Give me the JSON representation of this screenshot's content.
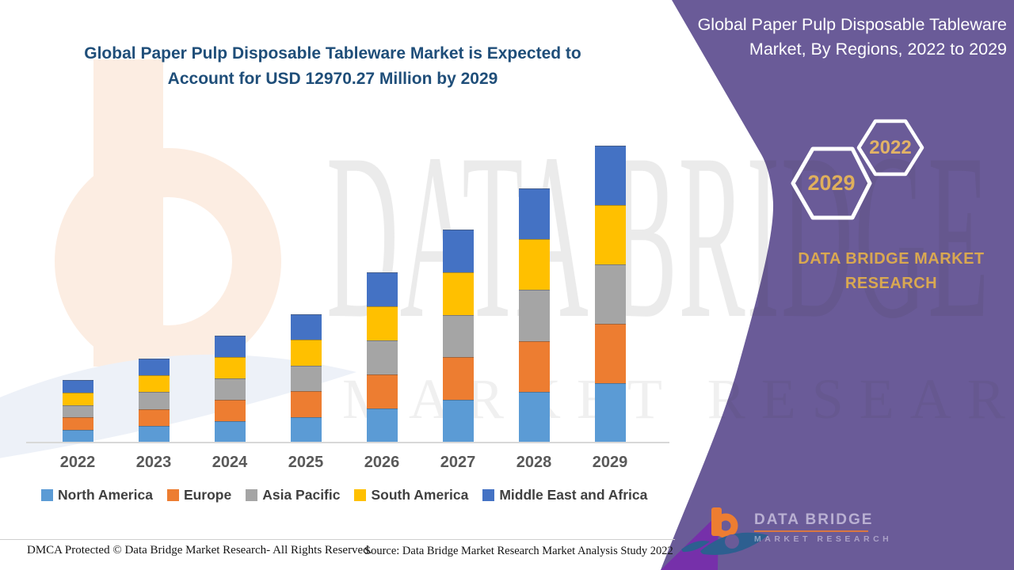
{
  "page": {
    "main_title": "Global Paper Pulp Disposable Tableware Market is Expected to Account for USD 12970.27 Million by 2029",
    "panel": {
      "title": "Global Paper Pulp Disposable Tableware Market, By Regions, 2022 to 2029",
      "badge_small": "2022",
      "badge_large": "2029",
      "brand_text": "DATA BRIDGE MARKET RESEARCH"
    },
    "watermark": {
      "line1": "DATA BRIDGE",
      "line2": "MARKET RESEARCH"
    },
    "footer": {
      "dmca": "DMCA Protected © Data Bridge Market Research- All Rights Reserved.",
      "source": "Source: Data Bridge Market Research Market Analysis Study 2022"
    },
    "logo": {
      "line1": "DATA BRIDGE",
      "line2": "MARKET RESEARCH"
    }
  },
  "colors": {
    "panel_bg": "#6A5B98",
    "panel_accent": "#7630AA",
    "title_text": "#1F4E79",
    "badge_text": "#DFAF5C",
    "brand_text": "#D9A851",
    "axis_label": "#595959",
    "legend_text": "#404040",
    "logo_orange": "#ED7D31",
    "logo_blue": "#2D5F90"
  },
  "chart_data": {
    "type": "bar",
    "stacked": true,
    "title": "Global Paper Pulp Disposable Tableware Market is Expected to Account for USD 12970.27 Million by 2029",
    "xlabel": "",
    "ylabel": "",
    "value_unit": "USD Million",
    "y_axis_visible": false,
    "grid": false,
    "legend_position": "bottom",
    "categories": [
      "2022",
      "2023",
      "2024",
      "2025",
      "2026",
      "2027",
      "2028",
      "2029"
    ],
    "series": [
      {
        "name": "North America",
        "color": "#5B9BD5",
        "values": [
          546.4,
          733.2,
          934.0,
          1120.6,
          1487.2,
          1860.8,
          2220.6,
          2594.05
        ]
      },
      {
        "name": "Europe",
        "color": "#ED7D31",
        "values": [
          546.4,
          733.2,
          934.0,
          1120.6,
          1487.2,
          1860.8,
          2220.6,
          2594.05
        ]
      },
      {
        "name": "Asia Pacific",
        "color": "#A5A5A5",
        "values": [
          546.4,
          733.2,
          934.0,
          1120.6,
          1487.2,
          1860.8,
          2220.6,
          2594.05
        ]
      },
      {
        "name": "South America",
        "color": "#FFC000",
        "values": [
          546.4,
          733.2,
          934.0,
          1120.6,
          1487.2,
          1860.8,
          2220.6,
          2594.05
        ]
      },
      {
        "name": "Middle East and Africa",
        "color": "#4472C4",
        "values": [
          546.4,
          733.2,
          934.0,
          1120.6,
          1487.2,
          1860.8,
          2220.6,
          2594.07
        ]
      }
    ],
    "totals": [
      2732.0,
      3666.0,
      4670.0,
      5603.0,
      7436.0,
      9304.0,
      11103.0,
      12970.27
    ],
    "total_2029_labeled": 12970.27
  }
}
